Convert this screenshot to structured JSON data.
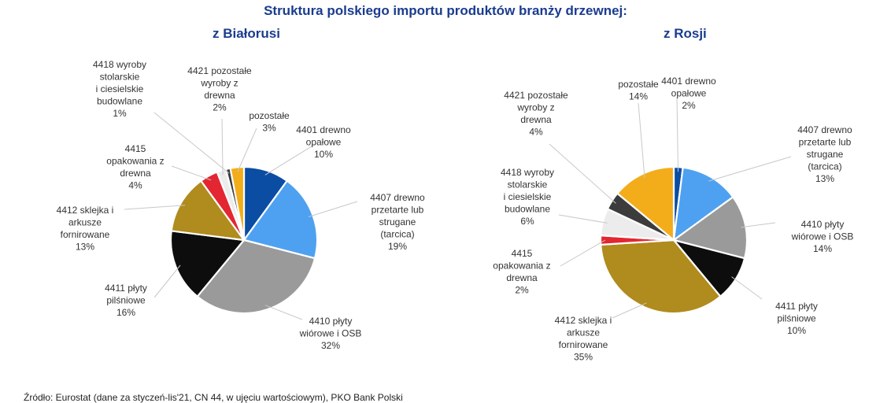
{
  "page": {
    "title": "Struktura polskiego importu produktów branży drzewnej:",
    "source": "Źródło: Eurostat (dane za styczeń-lis'21, CN 44, w ujęciu wartościowym), PKO Bank Polski"
  },
  "chart_data": [
    {
      "type": "pie",
      "title": "z Białorusi",
      "start": "top, clockwise",
      "slices": [
        {
          "label": [
            "4401 drewno",
            "opałowe",
            "10%"
          ],
          "value": 10,
          "color": "#0a4da2"
        },
        {
          "label": [
            "4407 drewno",
            "przetarte lub",
            "strugane",
            "(tarcica)",
            "19%"
          ],
          "value": 19,
          "color": "#4ea1f0"
        },
        {
          "label": [
            "4410 płyty",
            "wiórowe i OSB",
            "32%"
          ],
          "value": 32,
          "color": "#9a9a9a"
        },
        {
          "label": [
            "4411 płyty",
            "pilśniowe",
            "16%"
          ],
          "value": 16,
          "color": "#0d0d0d"
        },
        {
          "label": [
            "4412 sklejka i",
            "arkusze",
            "fornirowane",
            "13%"
          ],
          "value": 13,
          "color": "#b08b1d"
        },
        {
          "label": [
            "4415",
            "opakowania z",
            "drewna",
            "4%"
          ],
          "value": 4,
          "color": "#e32631"
        },
        {
          "label": [
            "4421 pozostałe",
            "wyroby z",
            "drewna",
            "2%"
          ],
          "value": 2,
          "color": "#ececec"
        },
        {
          "label": [
            "4418 wyroby",
            "stolarskie",
            "i ciesielskie",
            "budowlane",
            "1%"
          ],
          "value": 1,
          "color": "#3c3c3c"
        },
        {
          "label": [
            "pozostałe",
            "3%"
          ],
          "value": 3,
          "color": "#f3ad1a"
        }
      ]
    },
    {
      "type": "pie",
      "title": "z Rosji",
      "start": "top, clockwise",
      "slices": [
        {
          "label": [
            "4401 drewno",
            "opałowe",
            "2%"
          ],
          "value": 2,
          "color": "#0a4da2"
        },
        {
          "label": [
            "4407 drewno",
            "przetarte lub",
            "strugane",
            "(tarcica)",
            "13%"
          ],
          "value": 13,
          "color": "#4ea1f0"
        },
        {
          "label": [
            "4410 płyty",
            "wiórowe i OSB",
            "14%"
          ],
          "value": 14,
          "color": "#9a9a9a"
        },
        {
          "label": [
            "4411 płyty",
            "pilśniowe",
            "10%"
          ],
          "value": 10,
          "color": "#0d0d0d"
        },
        {
          "label": [
            "4412 sklejka i",
            "arkusze",
            "fornirowane",
            "35%"
          ],
          "value": 35,
          "color": "#b08b1d"
        },
        {
          "label": [
            "4415",
            "opakowania z",
            "drewna",
            "2%"
          ],
          "value": 2,
          "color": "#e32631"
        },
        {
          "label": [
            "4418 wyroby",
            "stolarskie",
            "i ciesielskie",
            "budowlane",
            "6%"
          ],
          "value": 6,
          "color": "#ececec"
        },
        {
          "label": [
            "4421 pozostałe",
            "wyroby z",
            "drewna",
            "4%"
          ],
          "value": 4,
          "color": "#3c3c3c"
        },
        {
          "label": [
            "pozostałe",
            "14%"
          ],
          "value": 14,
          "color": "#f3ad1a"
        }
      ]
    }
  ]
}
